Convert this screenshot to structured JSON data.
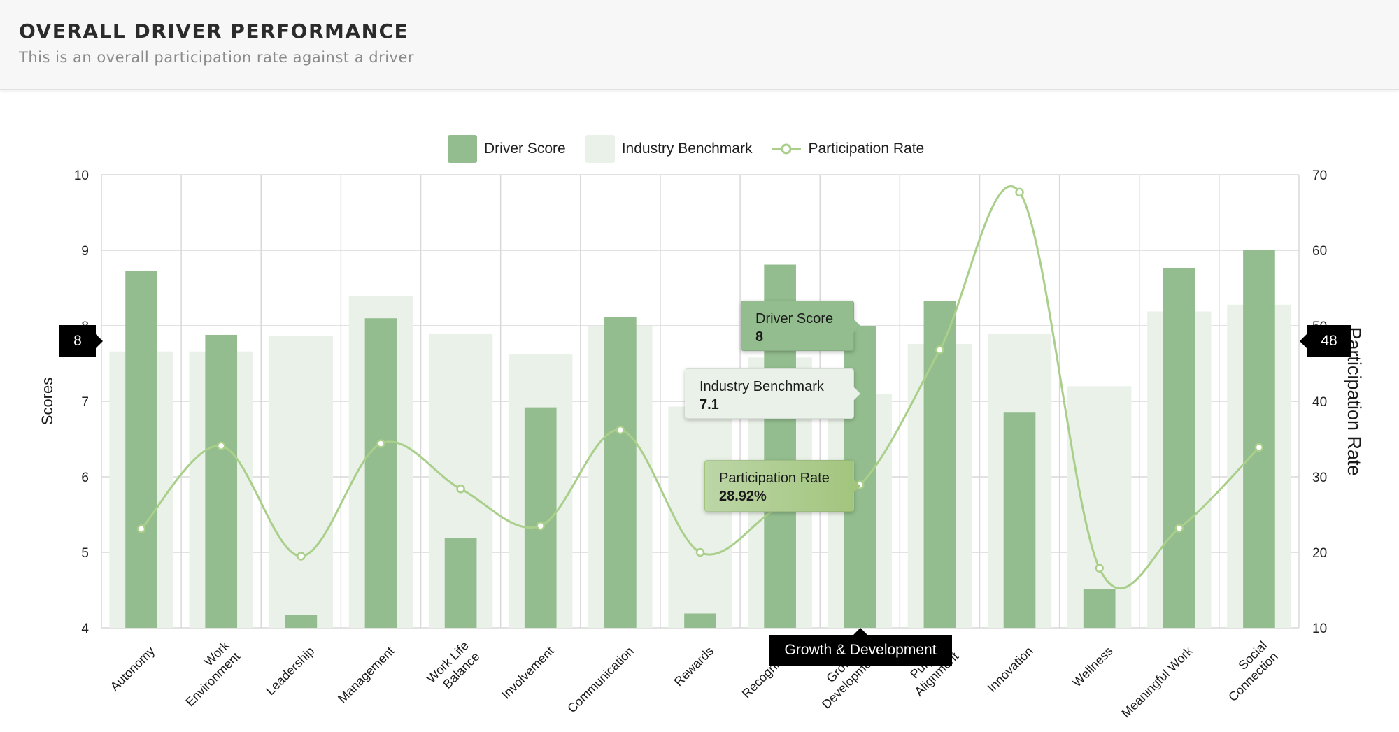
{
  "header": {
    "title": "OVERALL DRIVER PERFORMANCE",
    "subtitle": "This is an overall participation rate against a driver"
  },
  "legend": {
    "driver_score": "Driver Score",
    "industry_benchmark": "Industry Benchmark",
    "participation_rate": "Participation Rate"
  },
  "colors": {
    "driver_score": "#93bd8e",
    "industry_benchmark": "#e9f1e8",
    "participation_rate": "#a9cf8a",
    "grid": "#d9d9d9"
  },
  "tooltip": {
    "category": "Growth & Development",
    "driver_score_label": "Driver Score",
    "driver_score_value": "8",
    "benchmark_label": "Industry Benchmark",
    "benchmark_value": "7.1",
    "participation_label": "Participation Rate",
    "participation_value": "28.92%",
    "left_axis_marker": "8",
    "right_axis_marker": "48"
  },
  "chart_data": {
    "type": "bar",
    "title": "OVERALL DRIVER PERFORMANCE",
    "subtitle": "This is an overall participation rate against a driver",
    "ylabel": "Scores",
    "y2label": "Participation Rate",
    "ylim": [
      4,
      10
    ],
    "y2lim": [
      10,
      70
    ],
    "yticks": [
      4,
      5,
      6,
      7,
      8,
      9,
      10
    ],
    "y2ticks": [
      10,
      20,
      30,
      40,
      50,
      60,
      70
    ],
    "grid": true,
    "legend_position": "top",
    "categories": [
      "Autonomy",
      "Work Environment",
      "Leadership",
      "Management",
      "Work Life Balance",
      "Involvement",
      "Communication",
      "Rewards",
      "Recognition",
      "Growth & Development",
      "Purpose Alignment",
      "Innovation",
      "Wellness",
      "Meaningful Work",
      "Social Connection"
    ],
    "category_lines": [
      [
        "Autonomy"
      ],
      [
        "Work",
        "Environment"
      ],
      [
        "Leadership"
      ],
      [
        "Management"
      ],
      [
        "Work Life",
        "Balance"
      ],
      [
        "Involvement"
      ],
      [
        "Communication"
      ],
      [
        "Rewards"
      ],
      [
        "Recognition"
      ],
      [
        "Growth &",
        "Development"
      ],
      [
        "Purpose",
        "Alignment"
      ],
      [
        "Innovation"
      ],
      [
        "Wellness"
      ],
      [
        "Meaningful Work"
      ],
      [
        "Social",
        "Connection"
      ]
    ],
    "series": [
      {
        "name": "Driver Score",
        "type": "bar",
        "axis": "left",
        "values": [
          8.73,
          7.88,
          4.17,
          8.1,
          5.19,
          6.92,
          8.12,
          4.19,
          8.81,
          8.0,
          8.33,
          6.85,
          4.51,
          8.76,
          9.0
        ]
      },
      {
        "name": "Industry Benchmark",
        "type": "bar",
        "axis": "left",
        "values": [
          7.66,
          7.66,
          7.86,
          8.39,
          7.89,
          7.62,
          8.0,
          6.93,
          7.58,
          7.1,
          7.76,
          7.89,
          7.2,
          8.19,
          8.28
        ]
      },
      {
        "name": "Participation Rate",
        "type": "line",
        "axis": "right",
        "values": [
          23.1,
          34.1,
          19.5,
          34.4,
          28.4,
          23.5,
          36.2,
          20.0,
          26.0,
          28.92,
          46.8,
          67.7,
          17.9,
          23.2,
          33.9
        ]
      }
    ]
  }
}
